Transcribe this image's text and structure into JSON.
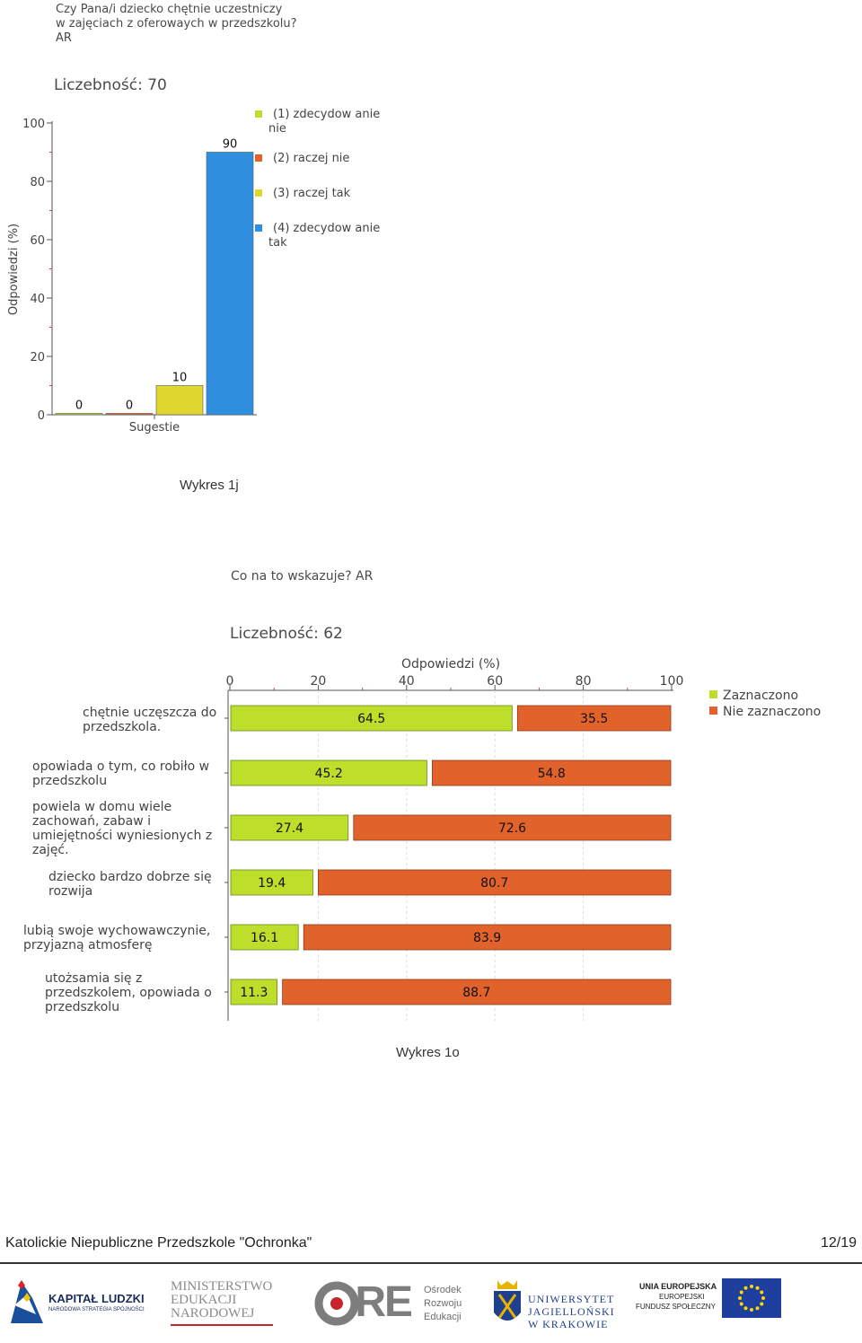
{
  "chart1": {
    "question_lines": [
      "Czy Pana/i dziecko chętnie uczestniczy",
      "w zajęciach z oferowaych w przedszkolu?",
      "AR"
    ],
    "count_label": "Liczebność: 70",
    "ylabel": "Odpowiedzi (%)",
    "xlabel": "Sugestie",
    "caption": "Wykres 1j"
  },
  "chart2": {
    "question": "Co na to wskazuje? AR",
    "count_label": "Liczebność: 62",
    "xlabel": "Odpowiedzi (%)",
    "caption": "Wykres 1o"
  },
  "chart_data": [
    {
      "type": "bar",
      "ylabel": "Odpowiedzi (%)",
      "xlabel": "Sugestie",
      "ylim": [
        0,
        100
      ],
      "yticks": [
        0,
        20,
        40,
        60,
        80,
        100
      ],
      "legend_position": "right",
      "series": [
        {
          "name": "(1) zdecydowanie nie",
          "label_lines": [
            "(1) zdecydow anie",
            "nie"
          ],
          "value": 0,
          "color": "#bede2c"
        },
        {
          "name": "(2) raczej nie",
          "label_lines": [
            "(2) raczej nie"
          ],
          "value": 0,
          "color": "#e2622b"
        },
        {
          "name": "(3) raczej tak",
          "label_lines": [
            "(3) raczej tak"
          ],
          "value": 10,
          "color": "#e0d630"
        },
        {
          "name": "(4) zdecydowanie tak",
          "label_lines": [
            "(4) zdecydow anie",
            "tak"
          ],
          "value": 90,
          "color": "#2f8fde"
        }
      ]
    },
    {
      "type": "bar",
      "orientation": "horizontal",
      "stacked": true,
      "xlabel": "Odpowiedzi (%)",
      "xlim": [
        0,
        100
      ],
      "xticks": [
        0,
        20,
        40,
        60,
        80,
        100
      ],
      "legend_position": "right",
      "categories": [
        [
          "chętnie uczęszcza do",
          "przedszkola."
        ],
        [
          "opowiada o tym, co robiło w",
          "przedszkolu"
        ],
        [
          "powiela w domu wiele",
          "zachowań, zabaw i",
          "umiejętności wyniesionych z",
          "zajęć."
        ],
        [
          "dziecko bardzo dobrze się",
          "rozwija"
        ],
        [
          "lubią swoje wychowawczynie,",
          "przyjazną atmosferę"
        ],
        [
          "utożsamia się z",
          "przedszkolem, opowiada o",
          "przedszkolu"
        ]
      ],
      "series": [
        {
          "name": "Zaznaczono",
          "color": "#bede2c",
          "values": [
            64.5,
            45.2,
            27.4,
            19.4,
            16.1,
            11.3
          ]
        },
        {
          "name": "Nie zaznaczono",
          "color": "#e2622b",
          "values": [
            35.5,
            54.8,
            72.6,
            80.7,
            83.9,
            88.7
          ]
        }
      ]
    }
  ],
  "footer": {
    "school": "Katolickie Niepubliczne Przedszkole \"Ochronka\"",
    "page": "12/19"
  },
  "logos": {
    "kl_title": "KAPITAŁ LUDZKI",
    "kl_sub": "NARODOWA STRATEGIA SPÓJNOŚCI",
    "men": [
      "MINISTERSTWO",
      "EDUKACJI",
      "NARODOWEJ"
    ],
    "ore_mark": "ORE",
    "ore_text": [
      "Ośrodek",
      "Rozwoju",
      "Edukacji"
    ],
    "uj": [
      "UNIWERSYTET",
      "JAGIELLOŃSKI",
      "W KRAKOWIE"
    ],
    "ue": [
      "UNIA EUROPEJSKA",
      "EUROPEJSKI",
      "FUNDUSZ SPOŁECZNY"
    ]
  }
}
